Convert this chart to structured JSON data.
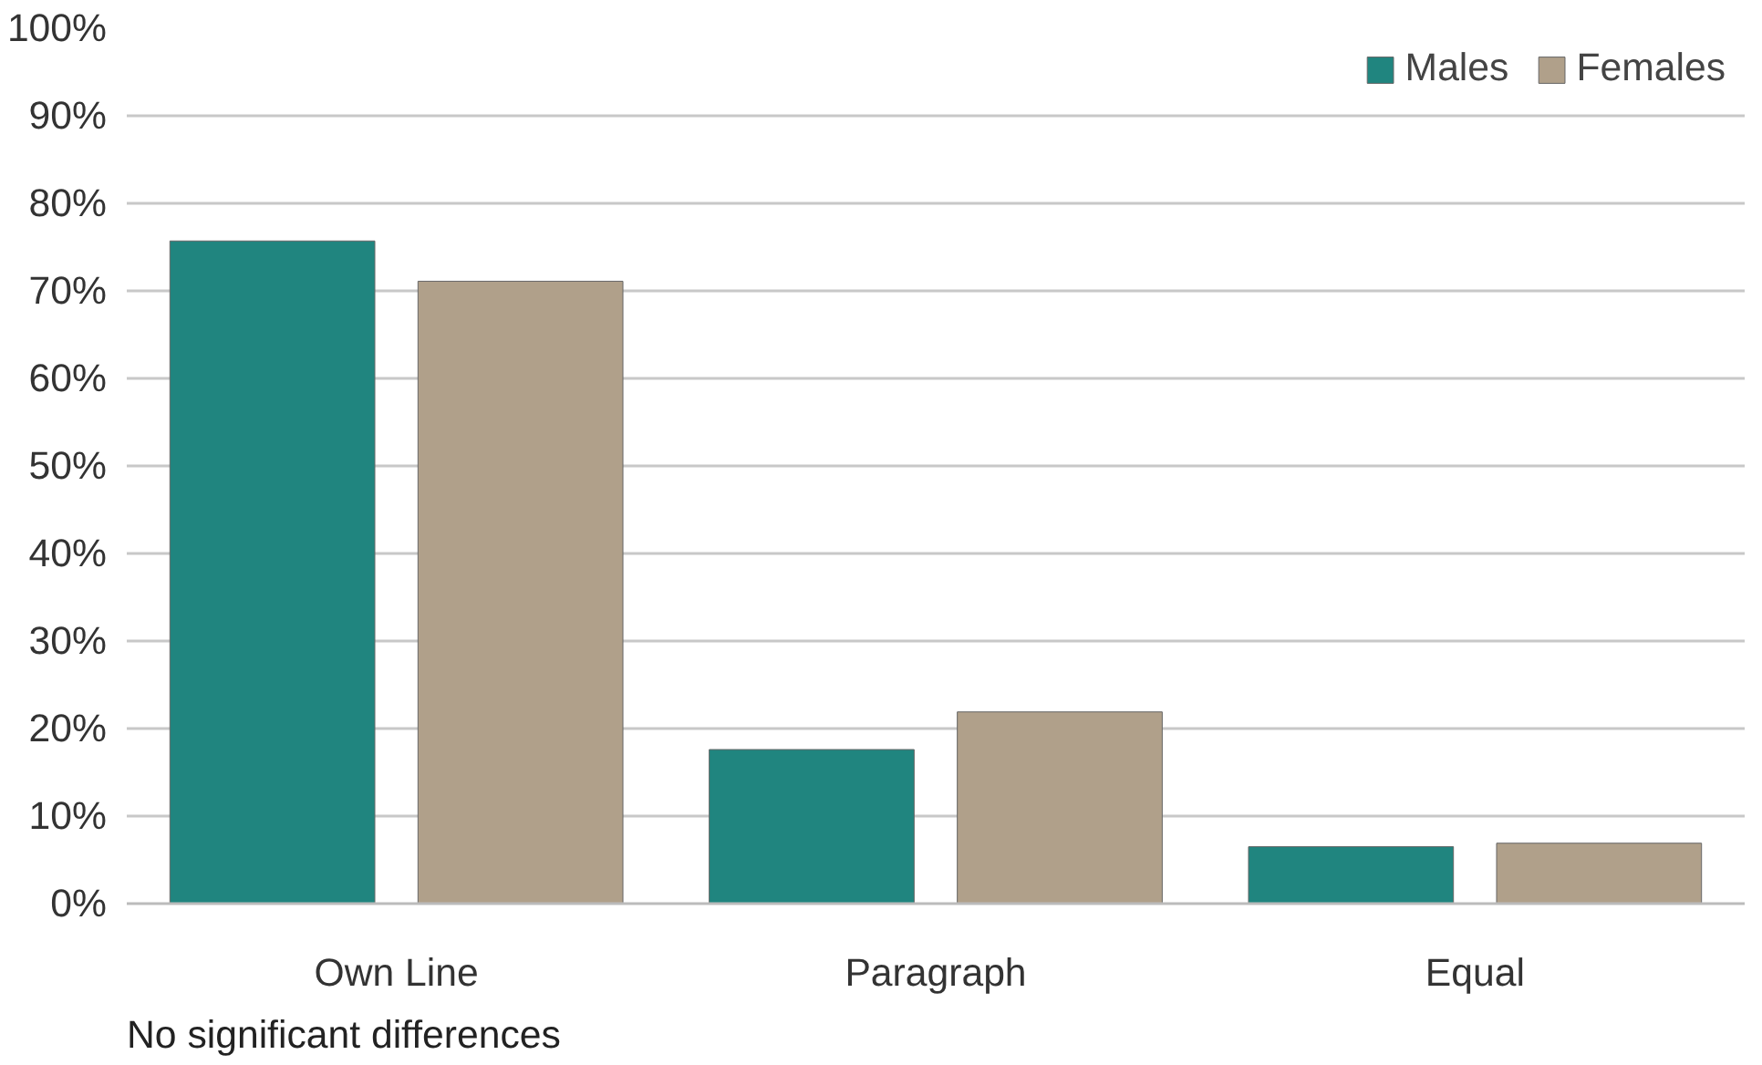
{
  "chart_data": {
    "type": "bar",
    "categories": [
      "Own Line",
      "Paragraph",
      "Equal"
    ],
    "series": [
      {
        "name": "Males",
        "color": "#20857f",
        "values": [
          75.7,
          17.6,
          6.5
        ]
      },
      {
        "name": "Females",
        "color": "#b0a08a",
        "values": [
          71.1,
          21.9,
          6.9
        ]
      }
    ],
    "ylim": [
      0,
      100
    ],
    "yticks": [
      {
        "value": 0,
        "label": "0%"
      },
      {
        "value": 10,
        "label": "10%"
      },
      {
        "value": 20,
        "label": "20%"
      },
      {
        "value": 30,
        "label": "30%"
      },
      {
        "value": 40,
        "label": "40%"
      },
      {
        "value": 50,
        "label": "50%"
      },
      {
        "value": 60,
        "label": "60%"
      },
      {
        "value": 70,
        "label": "70%"
      },
      {
        "value": 80,
        "label": "80%"
      },
      {
        "value": 90,
        "label": "90%"
      },
      {
        "value": 100,
        "label": "100%"
      }
    ],
    "grid": "y",
    "legend": "top right",
    "annotations": [
      "No significant differences"
    ]
  }
}
